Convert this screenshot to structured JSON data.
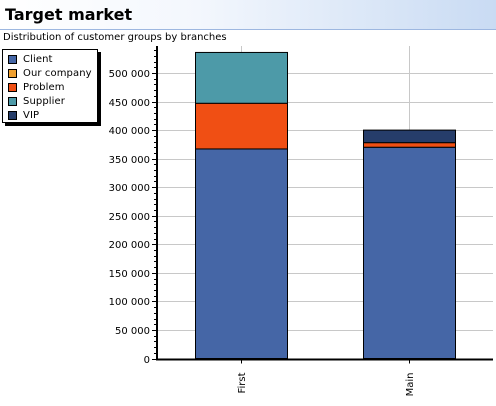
{
  "header": {
    "title": "Target market",
    "subtitle": "Distribution of customer groups by branches"
  },
  "legend": {
    "position": "top-left",
    "items": [
      {
        "label": "Client",
        "color": "#4566a6"
      },
      {
        "label": "Our company",
        "color": "#f0a030"
      },
      {
        "label": "Problem",
        "color": "#f04f14"
      },
      {
        "label": "Supplier",
        "color": "#4d9aa8"
      },
      {
        "label": "VIP",
        "color": "#263d6a"
      }
    ]
  },
  "chart_data": {
    "type": "bar",
    "stacked": true,
    "title": "Target market",
    "subtitle": "Distribution of customer groups by branches",
    "xlabel": "",
    "ylabel": "",
    "categories": [
      "First",
      "Main"
    ],
    "series": [
      {
        "name": "Client",
        "color": "#4566a6",
        "values": [
          367000,
          370000
        ]
      },
      {
        "name": "Our company",
        "color": "#f0a030",
        "values": [
          0,
          0
        ]
      },
      {
        "name": "Problem",
        "color": "#f04f14",
        "values": [
          80000,
          8000
        ]
      },
      {
        "name": "Supplier",
        "color": "#4d9aa8",
        "values": [
          89000,
          0
        ]
      },
      {
        "name": "VIP",
        "color": "#263d6a",
        "values": [
          0,
          22000
        ]
      }
    ],
    "yticks": [
      0,
      50000,
      100000,
      150000,
      200000,
      250000,
      300000,
      350000,
      400000,
      450000,
      500000
    ],
    "ytick_labels": [
      "0",
      "50 000",
      "100 000",
      "150 000",
      "200 000",
      "250 000",
      "300 000",
      "350 000",
      "400 000",
      "450 000",
      "500 000"
    ],
    "ylim": [
      0,
      540000
    ],
    "grid": true,
    "legend_position": "top-left"
  }
}
